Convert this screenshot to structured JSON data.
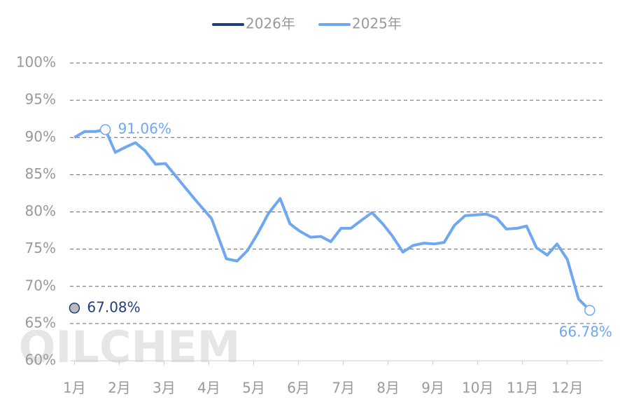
{
  "chart_data": {
    "type": "line",
    "watermark": "OILCHEM",
    "xlim": [
      0.9,
      12.8
    ],
    "xticks": [
      {
        "value": 1,
        "label": "1月"
      },
      {
        "value": 2,
        "label": "2月"
      },
      {
        "value": 3,
        "label": "3月"
      },
      {
        "value": 4,
        "label": "4月"
      },
      {
        "value": 5,
        "label": "5月"
      },
      {
        "value": 6,
        "label": "6月"
      },
      {
        "value": 7,
        "label": "7月"
      },
      {
        "value": 8,
        "label": "8月"
      },
      {
        "value": 9,
        "label": "9月"
      },
      {
        "value": 10,
        "label": "10月"
      },
      {
        "value": 11,
        "label": "11月"
      },
      {
        "value": 12,
        "label": "12月"
      }
    ],
    "ylim": [
      60,
      100
    ],
    "yticks": [
      {
        "value": 60,
        "label": "60%"
      },
      {
        "value": 65,
        "label": "65%"
      },
      {
        "value": 70,
        "label": "70%"
      },
      {
        "value": 75,
        "label": "75%"
      },
      {
        "value": 80,
        "label": "80%"
      },
      {
        "value": 85,
        "label": "85%"
      },
      {
        "value": 90,
        "label": "90%"
      },
      {
        "value": 95,
        "label": "95%"
      },
      {
        "value": 100,
        "label": "100%"
      }
    ],
    "grid": true,
    "series": [
      {
        "name": "2026年",
        "color": "#1f3f7a",
        "x": [
          1
        ],
        "values": [
          67.08
        ],
        "value_labels": [
          "67.08%"
        ]
      },
      {
        "name": "2025年",
        "color": "#6fa8f0",
        "x": [
          1.0,
          1.23,
          1.47,
          1.69,
          1.91,
          2.14,
          2.36,
          2.58,
          2.81,
          3.03,
          3.25,
          3.48,
          3.7,
          4.06,
          4.39,
          4.63,
          4.86,
          5.09,
          5.33,
          5.59,
          5.81,
          6.03,
          6.27,
          6.5,
          6.72,
          6.95,
          7.17,
          7.41,
          7.64,
          7.88,
          8.09,
          8.33,
          8.56,
          8.8,
          9.03,
          9.25,
          9.48,
          9.72,
          9.95,
          10.19,
          10.42,
          10.64,
          10.88,
          11.09,
          11.31,
          11.55,
          11.77,
          12.0,
          12.25,
          12.5
        ],
        "values": [
          90.0,
          90.8,
          90.8,
          91.06,
          88.0,
          88.7,
          89.3,
          88.2,
          86.4,
          86.5,
          84.9,
          83.2,
          81.6,
          79.1,
          73.7,
          73.4,
          74.8,
          77.1,
          79.8,
          81.8,
          78.4,
          77.4,
          76.6,
          76.7,
          76.0,
          77.8,
          77.8,
          78.9,
          79.9,
          78.4,
          76.8,
          74.6,
          75.5,
          75.8,
          75.7,
          75.9,
          78.2,
          79.5,
          79.6,
          79.7,
          79.2,
          77.7,
          77.8,
          78.1,
          75.2,
          74.2,
          75.7,
          73.6,
          68.3,
          66.78
        ],
        "value_labels": [
          null,
          null,
          null,
          "91.06%",
          null,
          null,
          null,
          null,
          null,
          null,
          null,
          null,
          null,
          null,
          null,
          null,
          null,
          null,
          null,
          null,
          null,
          null,
          null,
          null,
          null,
          null,
          null,
          null,
          null,
          null,
          null,
          null,
          null,
          null,
          null,
          null,
          null,
          null,
          null,
          null,
          null,
          null,
          null,
          null,
          null,
          null,
          null,
          null,
          null,
          "66.78%"
        ]
      }
    ]
  }
}
